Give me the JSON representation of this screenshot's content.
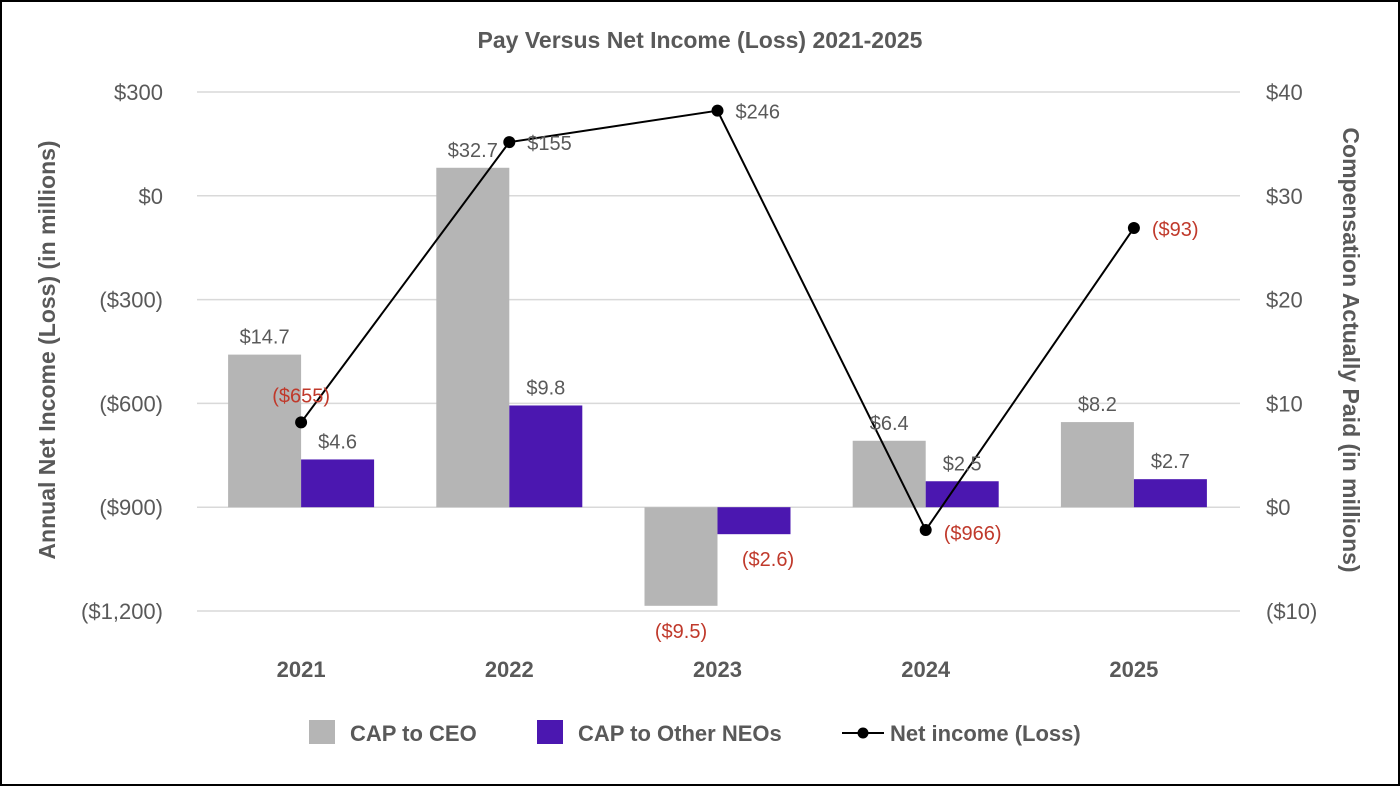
{
  "chart_data": {
    "type": "bar",
    "title": "Pay Versus Net Income (Loss) 2021-2025",
    "categories": [
      "2021",
      "2022",
      "2023",
      "2024",
      "2025"
    ],
    "ylabel_left": "Annual Net Income (Loss) (in millions)",
    "ylabel_right": "Compensation Actually Paid (in millions)",
    "left_axis": {
      "ylim": [
        -1200,
        300
      ],
      "ticks": [
        300,
        0,
        -300,
        -600,
        -900,
        -1200
      ],
      "tick_labels": [
        "$300",
        "$0",
        "($300)",
        "($600)",
        "($900)",
        "($1,200)"
      ]
    },
    "right_axis": {
      "ylim": [
        -10,
        40
      ],
      "ticks": [
        40,
        30,
        20,
        10,
        0,
        -10
      ],
      "tick_labels": [
        "$40",
        "$30",
        "$20",
        "$10",
        "$0",
        "($10)"
      ]
    },
    "grid": true,
    "legend_position": "bottom",
    "series": [
      {
        "name": "CAP to CEO",
        "type": "bar",
        "axis": "right",
        "color": "#b5b5b5",
        "values": [
          14.7,
          32.7,
          -9.5,
          6.4,
          8.2
        ],
        "labels": [
          "$14.7",
          "$32.7",
          "($9.5)",
          "$6.4",
          "$8.2"
        ]
      },
      {
        "name": "CAP to Other NEOs",
        "type": "bar",
        "axis": "right",
        "color": "#4b17b0",
        "values": [
          4.6,
          9.8,
          -2.6,
          2.5,
          2.7
        ],
        "labels": [
          "$4.6",
          "$9.8",
          "($2.6)",
          "$2.5",
          "$2.7"
        ]
      },
      {
        "name": "Net income (Loss)",
        "type": "line",
        "axis": "left",
        "color": "#000000",
        "values": [
          -655,
          155,
          246,
          -966,
          -93
        ],
        "labels": [
          "($655)",
          "$155",
          "$246",
          "($966)",
          "($93)"
        ]
      }
    ],
    "label_colors": {
      "positive": "#595959",
      "negative": "#c0392b"
    }
  }
}
